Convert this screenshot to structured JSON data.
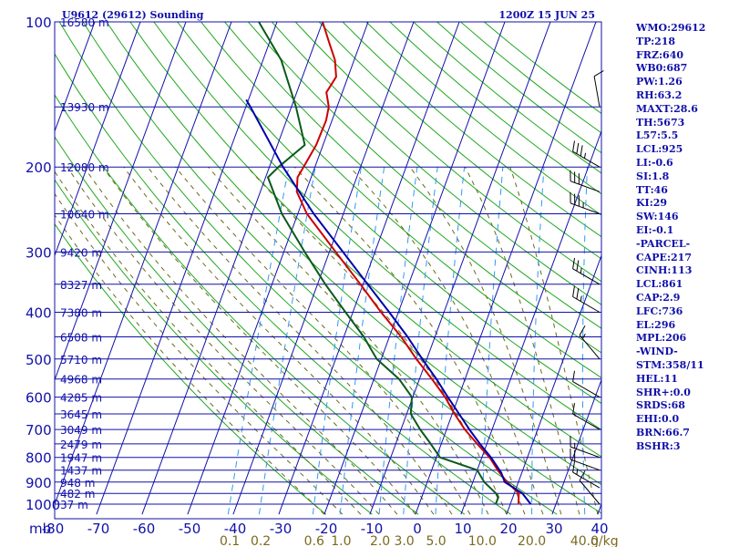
{
  "title_left": "U9612 (29612) Sounding",
  "title_right": "1200Z 15 JUN 25",
  "axis_unit_label": "mb",
  "mixing_ratio_unit": "g/kg",
  "colors": {
    "frame": "#1010aa",
    "isobar_grid": "#1010aa",
    "dry_adiabat": "#1fa81f",
    "moist_adiabat": "#6a6a1a",
    "mixing_ratio": "#3399ee",
    "temperature": "#cc0000",
    "dewpoint": "#0a5a1a",
    "parcel": "#0000aa",
    "wind_barb": "#000000",
    "text": "#1010aa"
  },
  "icons": {
    "wind_barbs": "wind-barb-icon"
  },
  "chart_data": {
    "type": "line",
    "subtype": "skew-t log-p sounding",
    "pressure_levels": [
      100,
      200,
      300,
      400,
      500,
      600,
      700,
      800,
      900,
      1000
    ],
    "temperature_ticks": [
      -80,
      -70,
      -60,
      -50,
      -40,
      -30,
      -20,
      -10,
      0,
      10,
      20,
      30,
      40
    ],
    "mixing_ratio_ticks": [
      "0.1",
      "0.2",
      "0.6",
      "1.0",
      "2.0",
      "3.0",
      "5.0",
      "10.0",
      "20.0",
      "40.0"
    ],
    "height_labels": [
      {
        "p": 100,
        "label": "16580 m"
      },
      {
        "p": 150,
        "label": "13930 m"
      },
      {
        "p": 200,
        "label": "12080 m"
      },
      {
        "p": 250,
        "label": "10640 m"
      },
      {
        "p": 300,
        "label": "9420 m"
      },
      {
        "p": 350,
        "label": "8327 m"
      },
      {
        "p": 400,
        "label": "7380 m"
      },
      {
        "p": 450,
        "label": "6508 m"
      },
      {
        "p": 500,
        "label": "5710 m"
      },
      {
        "p": 550,
        "label": "4968 m"
      },
      {
        "p": 600,
        "label": "4285 m"
      },
      {
        "p": 650,
        "label": "3645 m"
      },
      {
        "p": 700,
        "label": "3049 m"
      },
      {
        "p": 750,
        "label": "2479 m"
      },
      {
        "p": 800,
        "label": "1947 m"
      },
      {
        "p": 850,
        "label": "1437 m"
      },
      {
        "p": 900,
        "label": "948 m"
      },
      {
        "p": 950,
        "label": "482 m"
      },
      {
        "p": 1000,
        "label": "37 m"
      }
    ],
    "xlim": [
      -80,
      40
    ],
    "ylim": [
      1050,
      100
    ],
    "y_scale": "log",
    "skew_degC_per_decade": 38.8,
    "series": [
      {
        "role": "temperature",
        "points": [
          {
            "p": 1000,
            "t": 21.8
          },
          {
            "p": 950,
            "t": 21.0
          },
          {
            "p": 900,
            "t": 17.5
          },
          {
            "p": 850,
            "t": 14.5
          },
          {
            "p": 800,
            "t": 11.7
          },
          {
            "p": 750,
            "t": 7.9
          },
          {
            "p": 700,
            "t": 4.0
          },
          {
            "p": 650,
            "t": 0.5
          },
          {
            "p": 600,
            "t": -2.9
          },
          {
            "p": 550,
            "t": -7.3
          },
          {
            "p": 500,
            "t": -12.3
          },
          {
            "p": 450,
            "t": -17.4
          },
          {
            "p": 400,
            "t": -23.8
          },
          {
            "p": 350,
            "t": -30.6
          },
          {
            "p": 300,
            "t": -38.6
          },
          {
            "p": 250,
            "t": -48.0
          },
          {
            "p": 225,
            "t": -52.0
          },
          {
            "p": 210,
            "t": -53.0
          },
          {
            "p": 200,
            "t": -52.5
          },
          {
            "p": 180,
            "t": -51.5
          },
          {
            "p": 160,
            "t": -51.3
          },
          {
            "p": 150,
            "t": -51.8
          },
          {
            "p": 140,
            "t": -53.5
          },
          {
            "p": 130,
            "t": -52.6
          },
          {
            "p": 120,
            "t": -54.2
          },
          {
            "p": 110,
            "t": -57.0
          },
          {
            "p": 100,
            "t": -60.0
          }
        ]
      },
      {
        "role": "dewpoint",
        "points": [
          {
            "p": 1000,
            "t": 16.8
          },
          {
            "p": 970,
            "t": 16.8
          },
          {
            "p": 950,
            "t": 16.0
          },
          {
            "p": 900,
            "t": 12.5
          },
          {
            "p": 850,
            "t": 10.0
          },
          {
            "p": 800,
            "t": 0.8
          },
          {
            "p": 750,
            "t": -2.3
          },
          {
            "p": 700,
            "t": -5.8
          },
          {
            "p": 650,
            "t": -9.1
          },
          {
            "p": 600,
            "t": -10.2
          },
          {
            "p": 550,
            "t": -14.5
          },
          {
            "p": 500,
            "t": -21.0
          },
          {
            "p": 450,
            "t": -25.6
          },
          {
            "p": 400,
            "t": -31.6
          },
          {
            "p": 350,
            "t": -38.3
          },
          {
            "p": 300,
            "t": -45.4
          },
          {
            "p": 250,
            "t": -53.5
          },
          {
            "p": 210,
            "t": -59.5
          },
          {
            "p": 200,
            "t": -58.0
          },
          {
            "p": 180,
            "t": -54.0
          },
          {
            "p": 150,
            "t": -59.0
          },
          {
            "p": 120,
            "t": -66.0
          },
          {
            "p": 100,
            "t": -74.0
          }
        ]
      },
      {
        "role": "parcel",
        "points": [
          {
            "p": 1000,
            "t": 24.5
          },
          {
            "p": 950,
            "t": 21.8
          },
          {
            "p": 900,
            "t": 17.0
          },
          {
            "p": 861,
            "t": 15.5
          },
          {
            "p": 800,
            "t": 12.0
          },
          {
            "p": 750,
            "t": 8.5
          },
          {
            "p": 700,
            "t": 5.0
          },
          {
            "p": 650,
            "t": 1.5
          },
          {
            "p": 600,
            "t": -2.3
          },
          {
            "p": 550,
            "t": -6.3
          },
          {
            "p": 500,
            "t": -11.0
          },
          {
            "p": 450,
            "t": -16.0
          },
          {
            "p": 400,
            "t": -22.0
          },
          {
            "p": 350,
            "t": -29.0
          },
          {
            "p": 300,
            "t": -37.0
          },
          {
            "p": 250,
            "t": -46.5
          },
          {
            "p": 200,
            "t": -57.0
          },
          {
            "p": 150,
            "t": -69.0
          },
          {
            "p": 145,
            "t": -70.5
          }
        ]
      }
    ],
    "indices": [
      "WMO:29612",
      "TP:218",
      "FRZ:640",
      "WB0:687",
      "PW:1.26",
      "RH:63.2",
      "MAXT:28.6",
      "TH:5673",
      "L57:5.5",
      "LCL:925",
      "LI:-0.6",
      "SI:1.8",
      "TT:46",
      "KI:29",
      "SW:146",
      "EI:-0.1",
      "-PARCEL-",
      "CAPE:217",
      "CINH:113",
      "LCL:861",
      "CAP:2.9",
      "LFC:736",
      "EL:296",
      "MPL:206",
      "-WIND-",
      "STM:358/11",
      "HEL:11",
      "SHR+:0.0",
      "SRDS:68",
      "EHI:0.0",
      "BRN:66.7",
      "BSHR:3"
    ],
    "wind_barbs": [
      {
        "p": 1000,
        "dir": 320,
        "kt": 10
      },
      {
        "p": 925,
        "dir": 300,
        "kt": 15
      },
      {
        "p": 850,
        "dir": 290,
        "kt": 20
      },
      {
        "p": 800,
        "dir": 290,
        "kt": 15
      },
      {
        "p": 700,
        "dir": 300,
        "kt": 10
      },
      {
        "p": 600,
        "dir": 300,
        "kt": 10
      },
      {
        "p": 500,
        "dir": 320,
        "kt": 15
      },
      {
        "p": 400,
        "dir": 300,
        "kt": 25
      },
      {
        "p": 350,
        "dir": 300,
        "kt": 25
      },
      {
        "p": 250,
        "dir": 290,
        "kt": 35
      },
      {
        "p": 225,
        "dir": 290,
        "kt": 30
      },
      {
        "p": 200,
        "dir": 300,
        "kt": 35
      },
      {
        "p": 150,
        "dir": 350,
        "kt": 10
      }
    ]
  }
}
